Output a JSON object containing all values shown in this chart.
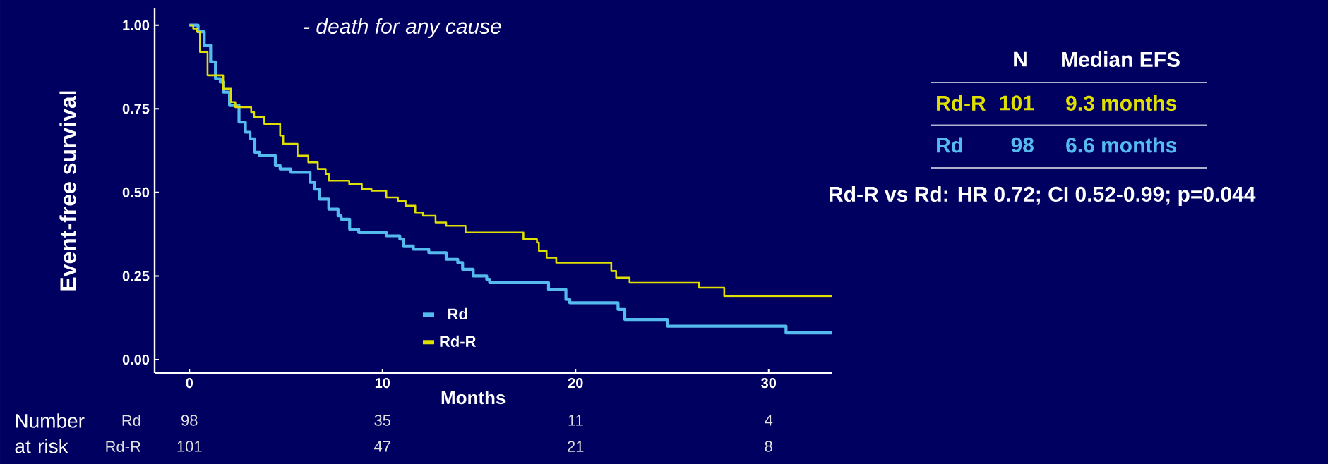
{
  "chart_data": {
    "type": "step",
    "title": "- death for any cause",
    "xlabel": "Months",
    "ylabel": "Event-free survival",
    "xlim": [
      -1.8,
      33.3
    ],
    "ylim": [
      -0.04,
      1.05
    ],
    "xticks": [
      0,
      10,
      20,
      30
    ],
    "yticks": [
      {
        "value": 0,
        "label": "0.00"
      },
      {
        "value": 0.25,
        "label": "0.25"
      },
      {
        "value": 0.5,
        "label": "0.50"
      },
      {
        "value": 0.75,
        "label": "0.75"
      },
      {
        "value": 1,
        "label": "1.00"
      }
    ],
    "legend": "bottom",
    "series": [
      {
        "name": "Rd",
        "color": "#55bbee",
        "x": [
          0,
          0.45,
          0.77,
          1.1,
          1.35,
          1.6,
          1.75,
          2.08,
          2.57,
          2.9,
          3.14,
          3.39,
          3.63,
          4.45,
          4.7,
          5.26,
          6.25,
          6.48,
          6.73,
          7.22,
          7.7,
          7.86,
          8.3,
          8.77,
          10.2,
          10.9,
          11.1,
          11.6,
          12.4,
          13.3,
          13.9,
          14.15,
          14.7,
          15.4,
          15.55,
          18.6,
          19.5,
          19.7,
          22.2,
          22.55,
          24.75,
          30.9,
          33.3
        ],
        "values": [
          1.0,
          0.98,
          0.94,
          0.89,
          0.84,
          0.83,
          0.8,
          0.76,
          0.71,
          0.68,
          0.66,
          0.62,
          0.61,
          0.58,
          0.57,
          0.56,
          0.53,
          0.51,
          0.48,
          0.45,
          0.43,
          0.42,
          0.39,
          0.38,
          0.37,
          0.36,
          0.34,
          0.33,
          0.32,
          0.3,
          0.29,
          0.27,
          0.25,
          0.24,
          0.23,
          0.21,
          0.18,
          0.17,
          0.15,
          0.12,
          0.1,
          0.08,
          0.08
        ]
      },
      {
        "name": "Rd-R",
        "color": "#e0e000",
        "x": [
          0,
          0.2,
          0.4,
          0.55,
          0.94,
          1.75,
          2.16,
          2.38,
          3.2,
          3.35,
          3.88,
          4.7,
          4.86,
          5.6,
          6.16,
          6.65,
          7.06,
          7.22,
          8.28,
          8.93,
          9.43,
          10.2,
          10.8,
          11.2,
          11.7,
          12.1,
          12.75,
          13.3,
          14.3,
          17.3,
          18.0,
          18.1,
          18.5,
          19.0,
          21.85,
          22.1,
          22.8,
          26.4,
          27.7,
          33.3
        ],
        "values": [
          1.0,
          0.99,
          0.98,
          0.92,
          0.85,
          0.81,
          0.77,
          0.755,
          0.74,
          0.725,
          0.705,
          0.67,
          0.645,
          0.61,
          0.59,
          0.57,
          0.555,
          0.535,
          0.525,
          0.51,
          0.505,
          0.485,
          0.475,
          0.46,
          0.44,
          0.43,
          0.41,
          0.4,
          0.38,
          0.36,
          0.35,
          0.325,
          0.305,
          0.29,
          0.265,
          0.245,
          0.23,
          0.215,
          0.19,
          0.19
        ]
      }
    ],
    "annotations": [
      "N",
      "Median EFS",
      "Rd-R",
      "101",
      "9.3 months",
      "Rd",
      "98",
      "6.6 months",
      "Rd-R vs Rd: HR 0.72; CI 0.52-0.99; p=0.044",
      "Number at risk",
      "Rd",
      "98",
      "35",
      "11",
      "4",
      "Rd-R",
      "101",
      "47",
      "21",
      "8"
    ]
  }
}
